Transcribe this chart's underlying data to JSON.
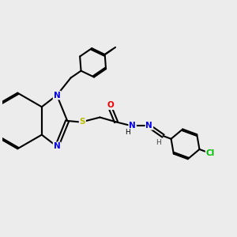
{
  "background_color": "#ececec",
  "bond_color": "#000000",
  "atom_colors": {
    "N": "#0000ee",
    "O": "#ee0000",
    "S": "#bbbb00",
    "Cl": "#00bb00",
    "C": "#000000",
    "H": "#444444"
  },
  "figsize": [
    3.0,
    3.0
  ],
  "dpi": 100,
  "lw": 1.5,
  "fontsize": 7.5
}
